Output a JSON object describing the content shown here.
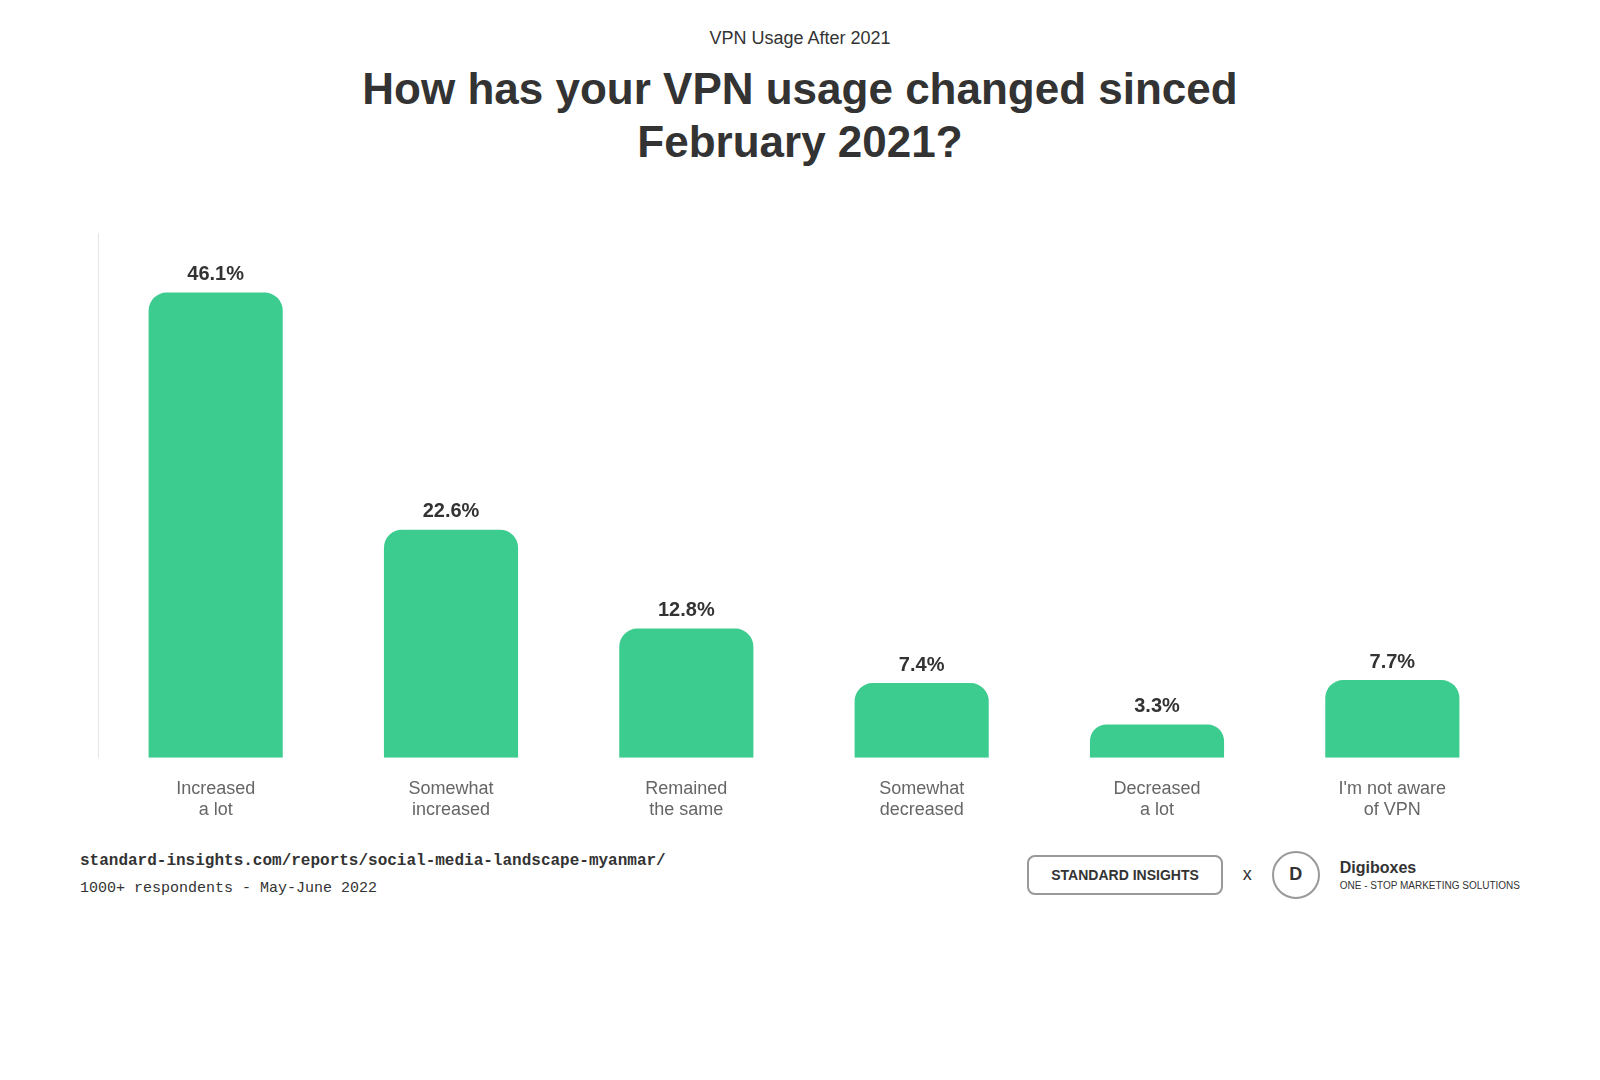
{
  "chart_data": {
    "type": "bar",
    "subtitle": "VPN Usage After 2021",
    "title": "How has your VPN usage changed sinced\nFebruary 2021?",
    "categories": [
      "Increased\na lot",
      "Somewhat\nincreased",
      "Remained\nthe same",
      "Somewhat\ndecreased",
      "Decreased\na lot",
      "I'm not aware\nof VPN"
    ],
    "values": [
      46.1,
      22.6,
      12.8,
      7.4,
      3.3,
      7.7
    ],
    "value_labels": [
      "46.1%",
      "22.6%",
      "12.8%",
      "7.4%",
      "3.3%",
      "7.7%"
    ],
    "data_labels": true,
    "color": "#3dcc8f",
    "ylim": [
      0,
      52
    ],
    "grid": false,
    "tick_labels": "x",
    "annotations": [
      "standard-insights.com/reports/social-media-landscape-myanmar/",
      "1000+ respondents - May-June 2022",
      "STANDARD INSIGHTS",
      "x",
      "D",
      "Digiboxes",
      "ONE - STOP MARKETING SOLUTIONS"
    ]
  }
}
